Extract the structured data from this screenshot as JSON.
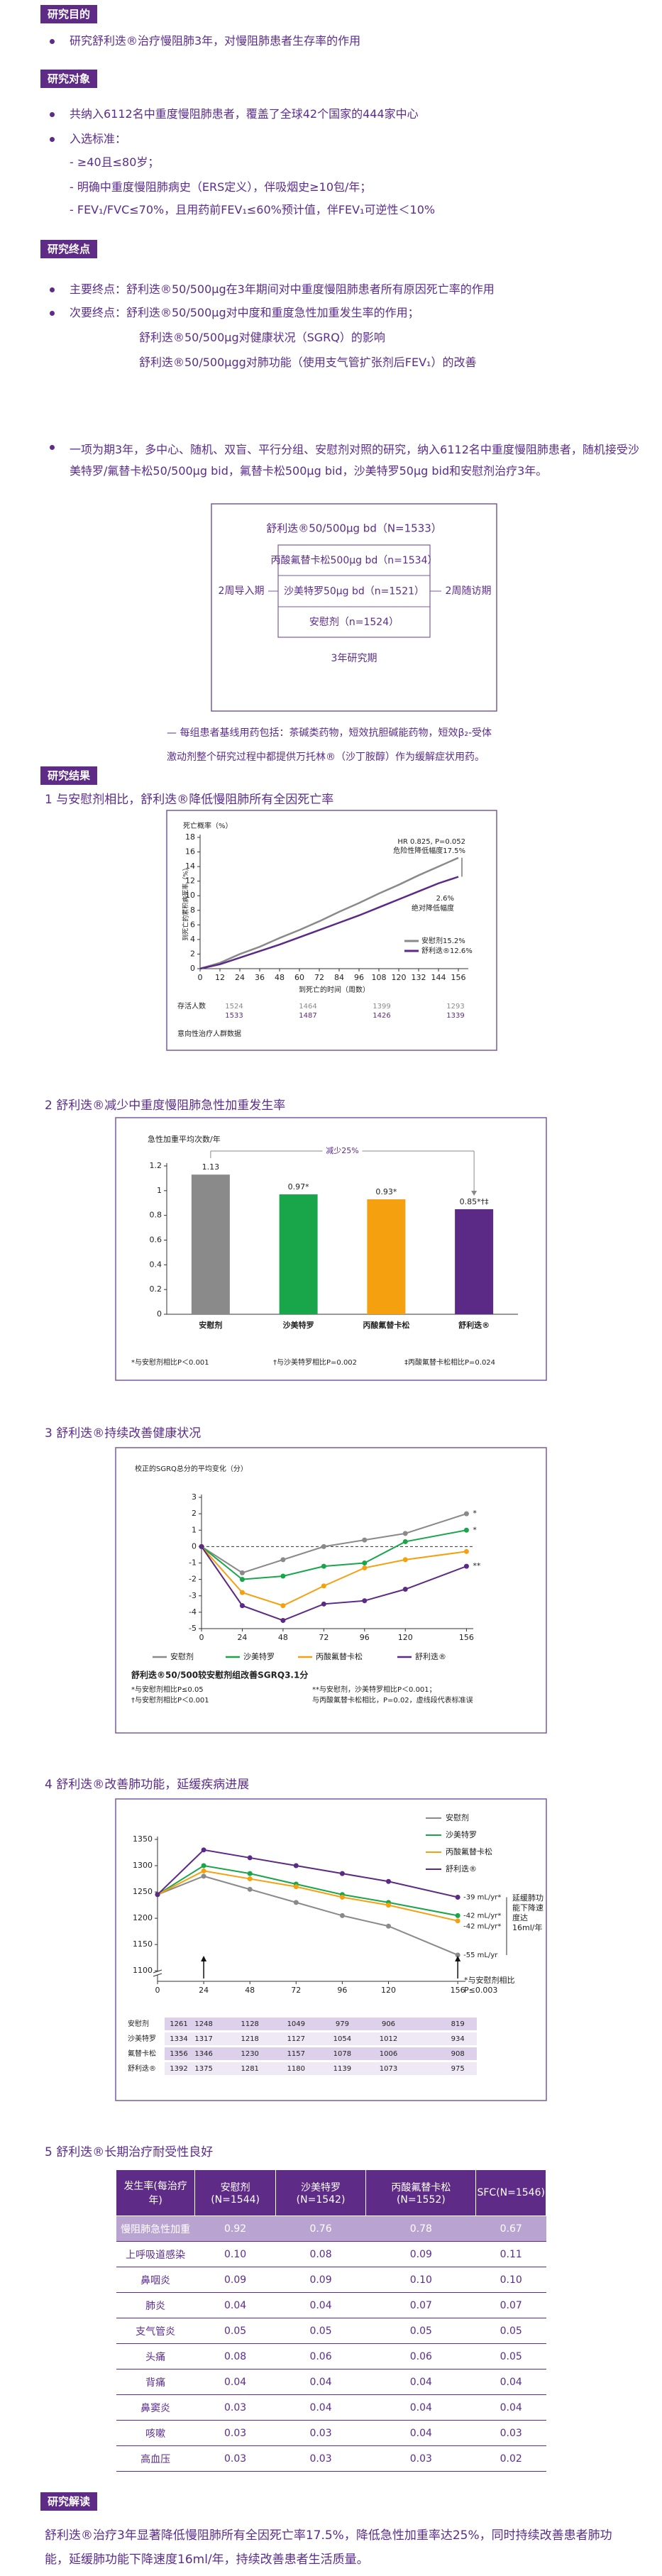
{
  "objective": {
    "heading": "研究目的",
    "text": "研究舒利迭®治疗慢阻肺3年，对慢阻肺患者生存率的作用"
  },
  "subjects": {
    "heading": "研究对象",
    "items": [
      "共纳入6112名中重度慢阻肺患者，覆盖了全球42个国家的444家中心",
      "入选标准："
    ],
    "criteria": [
      "- ≥40且≤80岁；",
      "- 明确中重度慢阻肺病史（ERS定义），伴吸烟史≥10包/年；",
      "- FEV₁/FVC≤70%，且用药前FEV₁≤60%预计值，伴FEV₁可逆性＜10%"
    ]
  },
  "endpoints": {
    "heading": "研究终点",
    "primary": "主要终点：舒利迭®50/500μg在3年期间对中重度慢阻肺患者所有原因死亡率的作用",
    "secondary": "次要终点：舒利迭®50/500μg对中度和重度急性加重发生率的作用；",
    "secondary_items": [
      "舒利迭®50/500μg对健康状况（SGRQ）的影响",
      "舒利迭®50/500μgg对肺功能（使用支气管扩张剂后FEV₁）的改善"
    ]
  },
  "design": {
    "text": "一项为期3年，多中心、随机、双盲、平行分组、安慰剂对照的研究，纳入6112名中重度慢阻肺患者，随机接受沙美特罗/氟替卡松50/500μg bid，氟替卡松500μg bid，沙美特罗50μg bid和安慰剂治疗3年。",
    "outer": "舒利迭®50/500μg bd（N=1533）",
    "arms": [
      "丙酸氟替卡松500μg bd（n=1534）",
      "沙美特罗50μg bd（n=1521）",
      "安慰剂（n=1524）"
    ],
    "run_in": "2周导入期",
    "follow_up": "2周随访期",
    "period": "3年研究期",
    "note": "— 每组患者基线用药包括：茶碱类药物，短效抗胆碱能药物，短效β₂-受体激动剂整个研究过程中都提供万托林®（沙丁胺醇）作为缓解症状用药。"
  },
  "results_heading": "研究结果",
  "chart_data": [
    {
      "type": "line",
      "title": "1 与安慰剂相比，舒利迭®降低慢阻肺所有全因死亡率",
      "y_label": "死亡概率（%）",
      "y_axis_title": "到死亡的累积病死率（%）",
      "x_label": "到死亡的时间（周数）",
      "x": [
        0,
        12,
        24,
        36,
        48,
        60,
        72,
        84,
        96,
        108,
        120,
        132,
        144,
        156
      ],
      "series": [
        {
          "name": "安慰剂15.2%",
          "color": "#8a8a8a",
          "values": [
            0,
            0.8,
            2,
            3,
            4.2,
            5.3,
            6.5,
            7.8,
            9,
            10.3,
            11.5,
            12.8,
            14,
            15.2
          ]
        },
        {
          "name": "舒利迭®12.6%",
          "color": "#5b2a86",
          "values": [
            0,
            0.6,
            1.5,
            2.4,
            3.3,
            4.3,
            5.3,
            6.3,
            7.3,
            8.4,
            9.5,
            10.6,
            11.7,
            12.6
          ]
        }
      ],
      "xlim": [
        0,
        162
      ],
      "ylim": [
        0,
        18
      ],
      "xticks": [
        0,
        12,
        24,
        36,
        48,
        60,
        72,
        84,
        96,
        108,
        120,
        132,
        144,
        156
      ],
      "yticks": [
        0,
        2,
        4,
        6,
        8,
        10,
        12,
        14,
        16,
        18
      ],
      "annotations": [
        "HR 0.825, P=0.052",
        "危险性降低幅度17.5%",
        "2.6%",
        "绝对降低幅度"
      ],
      "at_risk": {
        "label": "存活人数",
        "rows": [
          [
            1524,
            1464,
            1399,
            1293
          ],
          [
            1533,
            1487,
            1426,
            1339
          ]
        ]
      },
      "note": "意向性治疗人群数据"
    },
    {
      "type": "bar",
      "title": "2 舒利迭®减少中重度慢阻肺急性加重发生率",
      "y_label": "急性加重平均次数/年",
      "categories": [
        "安慰剂",
        "沙美特罗",
        "丙酸氟替卡松",
        "舒利迭®"
      ],
      "values": [
        1.13,
        0.97,
        0.93,
        0.85
      ],
      "value_labels": [
        "1.13",
        "0.97*",
        "0.93*",
        "0.85*†‡"
      ],
      "colors": [
        "#8a8a8a",
        "#19a64a",
        "#f5a00f",
        "#5b2a86"
      ],
      "ylim": [
        0,
        1.2
      ],
      "yticks": [
        0,
        0.2,
        0.4,
        0.6,
        0.8,
        1,
        1.2
      ],
      "annotation": "减少25%",
      "footnotes": [
        "*与安慰剂相比P＜0.001",
        "†与沙美特罗相比P=0.002",
        "‡丙酸氟替卡松相比P=0.024"
      ]
    },
    {
      "type": "line",
      "title": "3 舒利迭®持续改善健康状况",
      "y_label": "校正的SGRQ总分的平均变化（分）",
      "x": [
        0,
        24,
        48,
        72,
        96,
        120,
        156
      ],
      "series": [
        {
          "name": "安慰剂",
          "color": "#8a8a8a",
          "values": [
            0,
            -1.6,
            -0.8,
            0,
            0.4,
            0.8,
            2
          ]
        },
        {
          "name": "沙美特罗",
          "color": "#19a64a",
          "values": [
            0,
            -2,
            -1.8,
            -1.2,
            -1,
            0.3,
            1
          ]
        },
        {
          "name": "丙酸氟替卡松",
          "color": "#f5a00f",
          "values": [
            0,
            -2.8,
            -3.6,
            -2.4,
            -1.3,
            -0.8,
            -0.3
          ]
        },
        {
          "name": "舒利迭®",
          "color": "#5b2a86",
          "values": [
            0,
            -3.6,
            -4.5,
            -3.5,
            -3.3,
            -2.6,
            -1.2
          ]
        }
      ],
      "xlim": [
        0,
        160
      ],
      "ylim": [
        -5,
        3
      ],
      "xticks": [
        0,
        24,
        48,
        72,
        96,
        120,
        156
      ],
      "yticks": [
        3,
        2,
        1,
        0,
        -1,
        -2,
        -3,
        -4,
        -5
      ],
      "annotations": [
        "*",
        "*",
        "**"
      ],
      "note": "舒利迭®50/500较安慰剂组改善SGRQ3.1分",
      "footnotes": [
        "*与安慰剂相比P≤0.05",
        "†与安慰剂相比P＜0.001",
        "**与安慰剂，沙美特罗相比P＜0.001；",
        "与丙酸氟替卡松相比，P=0.02，虚线段代表标准误"
      ]
    },
    {
      "type": "line",
      "title": "4 舒利迭®改善肺功能，延缓疾病进展",
      "x": [
        0,
        24,
        48,
        72,
        96,
        120,
        156
      ],
      "series": [
        {
          "name": "安慰剂",
          "color": "#8a8a8a",
          "rate_label": "-55 mL/yr",
          "values": [
            1245,
            1280,
            1255,
            1230,
            1205,
            1185,
            1130
          ]
        },
        {
          "name": "沙美特罗",
          "color": "#19a64a",
          "rate_label": "-42 mL/yr*",
          "values": [
            1245,
            1300,
            1285,
            1265,
            1245,
            1230,
            1205
          ]
        },
        {
          "name": "丙酸氟替卡松",
          "color": "#f5a00f",
          "rate_label": "-42 mL/yr*",
          "values": [
            1245,
            1290,
            1275,
            1260,
            1240,
            1225,
            1195
          ]
        },
        {
          "name": "舒利迭®",
          "color": "#5b2a86",
          "rate_label": "-39 mL/yr*",
          "values": [
            1245,
            1330,
            1315,
            1300,
            1285,
            1270,
            1240
          ]
        }
      ],
      "xlim": [
        0,
        160
      ],
      "ylim": [
        1080,
        1350
      ],
      "xticks": [
        0,
        24,
        48,
        72,
        96,
        120,
        156
      ],
      "yticks": [
        1100,
        1150,
        1200,
        1250,
        1300,
        1350
      ],
      "annotation": "延缓肺功能下降速度达16ml/年",
      "footnote": "*与安慰剂相比P≤0.003",
      "counts": [
        {
          "name": "安慰剂",
          "values": [
            1261,
            1248,
            1128,
            1049,
            979,
            906,
            819
          ]
        },
        {
          "name": "沙美特罗",
          "values": [
            1334,
            1317,
            1218,
            1127,
            1054,
            1012,
            934
          ]
        },
        {
          "name": "氟替卡松",
          "values": [
            1356,
            1346,
            1230,
            1157,
            1078,
            1006,
            908
          ]
        },
        {
          "name": "舒利迭®",
          "values": [
            1392,
            1375,
            1281,
            1180,
            1139,
            1073,
            975
          ]
        }
      ]
    }
  ],
  "table": {
    "title": "5 舒利迭®长期治疗耐受性良好",
    "header": [
      "发生率(每治疗年)",
      "安慰剂(N=1544)",
      "沙美特罗(N=1542)",
      "丙酸氟替卡松(N=1552)",
      "SFC(N=1546)"
    ],
    "rows": [
      [
        "慢阻肺急性加重",
        "0.92",
        "0.76",
        "0.78",
        "0.67"
      ],
      [
        "上呼吸道感染",
        "0.10",
        "0.08",
        "0.09",
        "0.11"
      ],
      [
        "鼻咽炎",
        "0.09",
        "0.09",
        "0.10",
        "0.10"
      ],
      [
        "肺炎",
        "0.04",
        "0.04",
        "0.07",
        "0.07"
      ],
      [
        "支气管炎",
        "0.05",
        "0.05",
        "0.05",
        "0.05"
      ],
      [
        "头痛",
        "0.08",
        "0.06",
        "0.06",
        "0.05"
      ],
      [
        "背痛",
        "0.04",
        "0.04",
        "0.04",
        "0.04"
      ],
      [
        "鼻窦炎",
        "0.03",
        "0.04",
        "0.04",
        "0.04"
      ],
      [
        "咳嗽",
        "0.03",
        "0.03",
        "0.04",
        "0.03"
      ],
      [
        "高血压",
        "0.03",
        "0.03",
        "0.03",
        "0.02"
      ]
    ]
  },
  "conclusion": {
    "heading": "研究解读",
    "text": "舒利迭®治疗3年显著降低慢阻肺所有全因死亡率17.5%，降低急性加重率达25%，同时持续改善患者肺功能，延缓肺功能下降速度16ml/年，持续改善患者生活质量。"
  }
}
